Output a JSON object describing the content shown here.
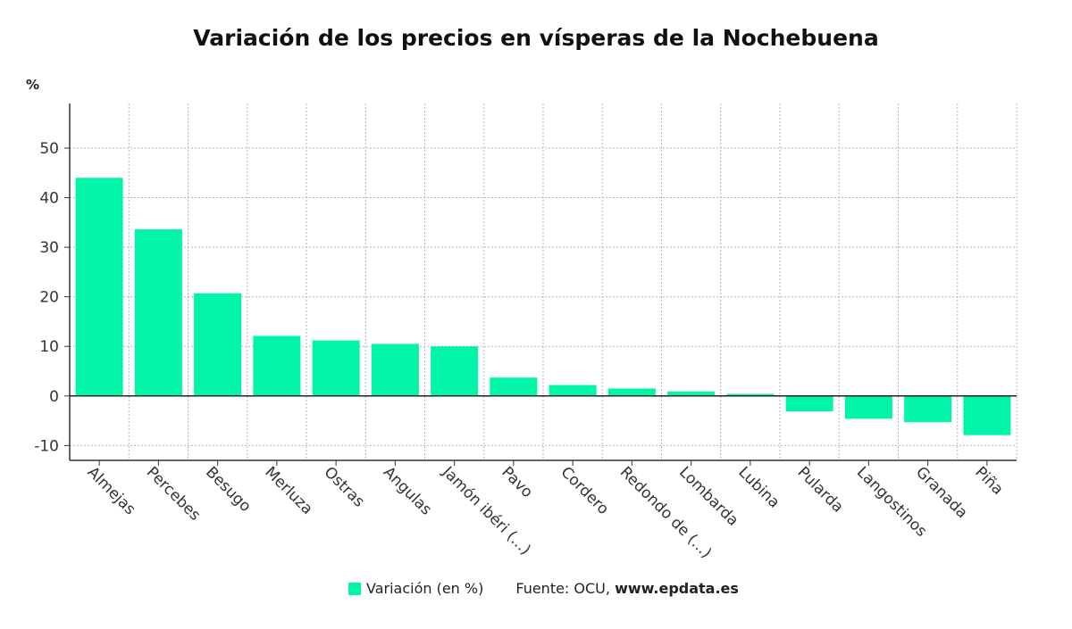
{
  "chart_data": {
    "type": "bar",
    "title": "Variación de los precios en vísperas de la Nochebuena",
    "ylabel": "%",
    "xlabel": "",
    "categories": [
      "Almejas",
      "Percebes",
      "Besugo",
      "Merluza",
      "Ostras",
      "Angulas",
      "Jamón ibéri (...)",
      "Pavo",
      "Cordero",
      "Redondo de (...)",
      "Lombarda",
      "Lubina",
      "Pularda",
      "Langostinos",
      "Granada",
      "Piña"
    ],
    "series": [
      {
        "name": "Variación (en %)",
        "color": "#00f5a8",
        "values": [
          44.0,
          33.6,
          20.7,
          12.1,
          11.2,
          10.5,
          10.0,
          3.7,
          2.2,
          1.5,
          0.9,
          0.4,
          -3.1,
          -4.6,
          -5.3,
          -7.9
        ]
      }
    ],
    "ylim": [
      -13,
      59
    ],
    "yticks": [
      -10,
      0,
      10,
      20,
      30,
      40,
      50
    ],
    "grid": true,
    "legend": "bottom-center"
  },
  "legend": {
    "label": "Variación (en %)"
  },
  "source": {
    "prefix": "Fuente: OCU,",
    "url": "www.epdata.es"
  }
}
